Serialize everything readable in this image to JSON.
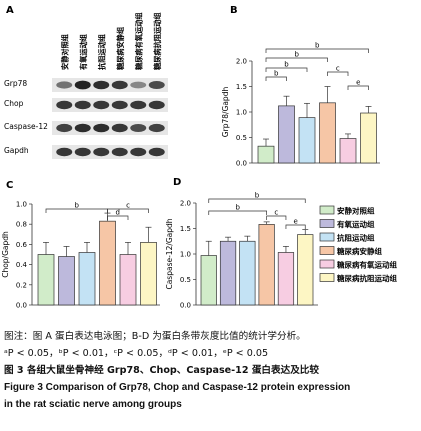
{
  "colors": {
    "bar_fills": [
      "#d1ecc9",
      "#bdb9dc",
      "#c3e2f4",
      "#f6c6a6",
      "#f7cde2",
      "#fdf6c4"
    ],
    "stroke": "#333333"
  },
  "panel_a": {
    "letter": "A",
    "lane_labels": [
      "安静对照组",
      "有氧运动组",
      "抗阻运动组",
      "糖尿病安静组",
      "糖尿病有氧运动组",
      "糖尿病抗阻运动组"
    ],
    "rows": [
      {
        "label": "Grp78",
        "intensities": [
          0.55,
          0.95,
          0.9,
          0.85,
          0.45,
          0.75
        ]
      },
      {
        "label": "Chop",
        "intensities": [
          0.85,
          0.85,
          0.85,
          0.85,
          0.85,
          0.85
        ]
      },
      {
        "label": "Caspase-12",
        "intensities": [
          0.8,
          0.9,
          0.9,
          0.85,
          0.75,
          0.8
        ]
      },
      {
        "label": "Gapdh",
        "intensities": [
          0.85,
          0.85,
          0.85,
          0.85,
          0.85,
          0.85
        ]
      }
    ]
  },
  "legend": {
    "items": [
      "安静对照组",
      "有氧运动组",
      "抗阻运动组",
      "糖尿病安静组",
      "糖尿病有氧运动组",
      "糖尿病抗阻运动组"
    ]
  },
  "chart_data": [
    {
      "panel": "B",
      "type": "bar",
      "ylabel": "Grp78/Gapdh",
      "ylim": [
        0,
        2.0
      ],
      "yticks": [
        "0.0",
        "0.5",
        "1.0",
        "1.5",
        "2.0"
      ],
      "values": [
        0.33,
        1.12,
        0.89,
        1.18,
        0.48,
        0.98
      ],
      "errors": [
        0.14,
        0.19,
        0.28,
        0.32,
        0.09,
        0.13
      ],
      "brackets": [
        {
          "from": 1,
          "to": 6,
          "label": "b"
        },
        {
          "from": 1,
          "to": 4,
          "label": "b"
        },
        {
          "from": 1,
          "to": 3,
          "label": "b"
        },
        {
          "from": 1,
          "to": 2,
          "label": "b"
        },
        {
          "from": 4,
          "to": 5,
          "label": "c"
        },
        {
          "from": 5,
          "to": 6,
          "label": "e"
        }
      ]
    },
    {
      "panel": "C",
      "type": "bar",
      "ylabel": "Chop/Gapdh",
      "ylim": [
        0,
        1.0
      ],
      "yticks": [
        "0.0",
        "0.2",
        "0.4",
        "0.6",
        "0.8",
        "1.0"
      ],
      "values": [
        0.5,
        0.48,
        0.52,
        0.83,
        0.5,
        0.62
      ],
      "errors": [
        0.12,
        0.1,
        0.1,
        0.08,
        0.12,
        0.15
      ],
      "brackets": [
        {
          "from": 1,
          "to": 4,
          "label": "b"
        },
        {
          "from": 4,
          "to": 5,
          "label": "d"
        },
        {
          "from": 4,
          "to": 6,
          "label": "c"
        }
      ]
    },
    {
      "panel": "D",
      "type": "bar",
      "ylabel": "Caspase-12/Gapdh",
      "ylim": [
        0,
        2.0
      ],
      "yticks": [
        "0.0",
        "0.5",
        "1.0",
        "1.5",
        "2.0"
      ],
      "values": [
        0.97,
        1.25,
        1.25,
        1.58,
        1.03,
        1.38
      ],
      "errors": [
        0.28,
        0.08,
        0.1,
        0.05,
        0.12,
        0.1
      ],
      "brackets": [
        {
          "from": 1,
          "to": 6,
          "label": "b"
        },
        {
          "from": 1,
          "to": 4,
          "label": "b"
        },
        {
          "from": 4,
          "to": 5,
          "label": "c"
        },
        {
          "from": 5,
          "to": 6,
          "label": "e"
        }
      ]
    }
  ],
  "captions": {
    "note": "图注：图 A 蛋白表达电泳图；B-D 为蛋白条带灰度比值的统计学分析。",
    "stats": "ᵃP < 0.05，ᵇP < 0.01，ᶜP < 0.05，ᵈP < 0.01，ᵉP < 0.05",
    "fig_cn": "图 3  各组大鼠坐骨神经 Grp78、Chop、Caspase-12 蛋白表达及比较",
    "fig_en_1": "Figure 3  Comparison of Grp78, Chop and Caspase-12 protein expression",
    "fig_en_2": "in the rat sciatic nerve among groups"
  }
}
